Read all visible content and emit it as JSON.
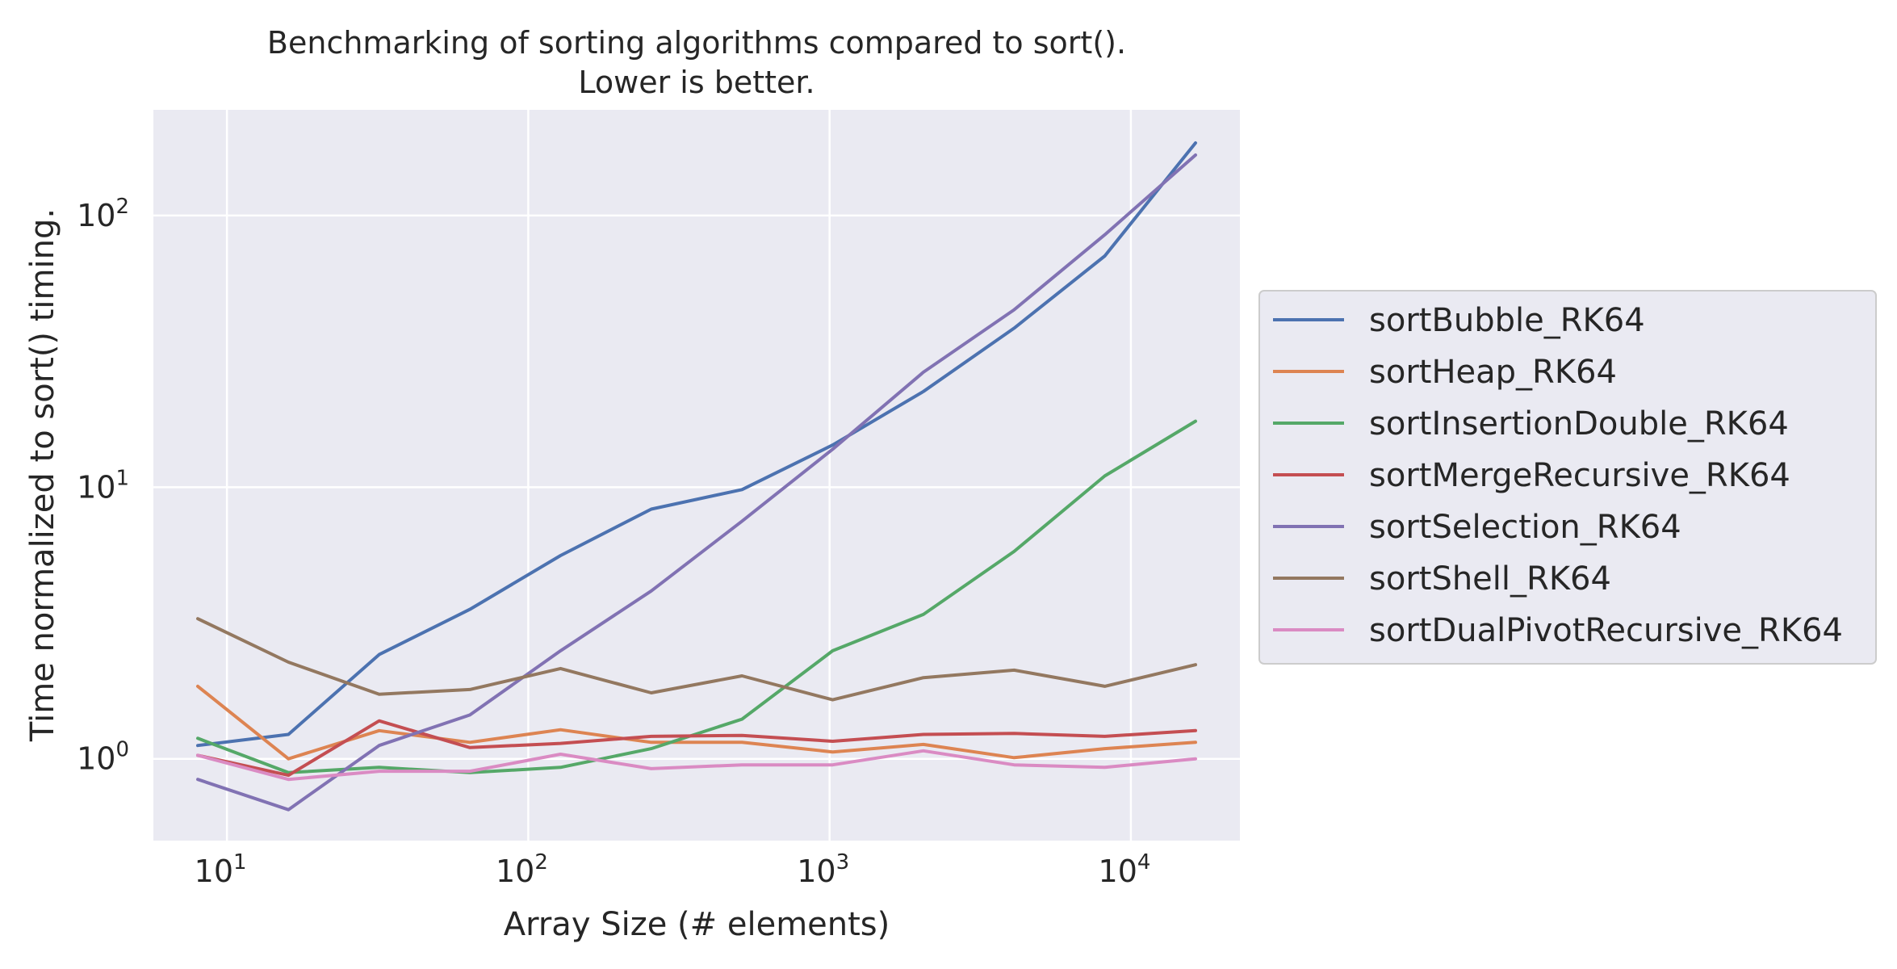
{
  "chart_data": {
    "type": "line",
    "title": "Benchmarking of sorting algorithms compared to sort().",
    "subtitle": "Lower is better.",
    "xlabel": "Array Size (# elements)",
    "ylabel": "Time normalized to sort() timing.",
    "xscale": "log",
    "yscale": "log",
    "xlim": [
      5.7,
      23000
    ],
    "ylim": [
      0.5,
      245
    ],
    "xticks": [
      {
        "value": 10,
        "base": "10",
        "exp": "1"
      },
      {
        "value": 100,
        "base": "10",
        "exp": "2"
      },
      {
        "value": 1000,
        "base": "10",
        "exp": "3"
      },
      {
        "value": 10000,
        "base": "10",
        "exp": "4"
      }
    ],
    "yticks": [
      {
        "value": 1,
        "base": "10",
        "exp": "0"
      },
      {
        "value": 10,
        "base": "10",
        "exp": "1"
      },
      {
        "value": 100,
        "base": "10",
        "exp": "2"
      }
    ],
    "grid": true,
    "legend_position": "right, outside plot",
    "background": "#eaeaf2",
    "x": [
      8,
      16,
      32,
      64,
      128,
      256,
      512,
      1024,
      2048,
      4096,
      8192,
      16384
    ],
    "series": [
      {
        "name": "sortBubble_RK64",
        "color": "#4c72b0",
        "values": [
          1.12,
          1.23,
          2.42,
          3.55,
          5.6,
          8.3,
          9.8,
          14.3,
          22.5,
          38.5,
          71.0,
          185.0
        ]
      },
      {
        "name": "sortHeap_RK64",
        "color": "#dd8452",
        "values": [
          1.85,
          1.0,
          1.27,
          1.15,
          1.28,
          1.15,
          1.15,
          1.06,
          1.13,
          1.01,
          1.09,
          1.15
        ]
      },
      {
        "name": "sortInsertionDouble_RK64",
        "color": "#55a868",
        "values": [
          1.19,
          0.89,
          0.93,
          0.89,
          0.93,
          1.09,
          1.4,
          2.5,
          3.4,
          5.8,
          11.0,
          17.5
        ]
      },
      {
        "name": "sortMergeRecursive_RK64",
        "color": "#c44e52",
        "values": [
          1.03,
          0.87,
          1.38,
          1.1,
          1.14,
          1.21,
          1.22,
          1.16,
          1.23,
          1.24,
          1.21,
          1.27
        ]
      },
      {
        "name": "sortSelection_RK64",
        "color": "#8172b3",
        "values": [
          0.84,
          0.65,
          1.12,
          1.45,
          2.5,
          4.15,
          7.5,
          13.8,
          26.5,
          45.0,
          85.0,
          167.0
        ]
      },
      {
        "name": "sortShell_RK64",
        "color": "#937860",
        "values": [
          3.28,
          2.27,
          1.73,
          1.8,
          2.15,
          1.75,
          2.02,
          1.65,
          1.99,
          2.12,
          1.85,
          2.22
        ]
      },
      {
        "name": "sortDualPivotRecursive_RK64",
        "color": "#da8bc3",
        "values": [
          1.03,
          0.84,
          0.9,
          0.9,
          1.04,
          0.92,
          0.95,
          0.95,
          1.07,
          0.95,
          0.93,
          1.0
        ]
      }
    ]
  }
}
